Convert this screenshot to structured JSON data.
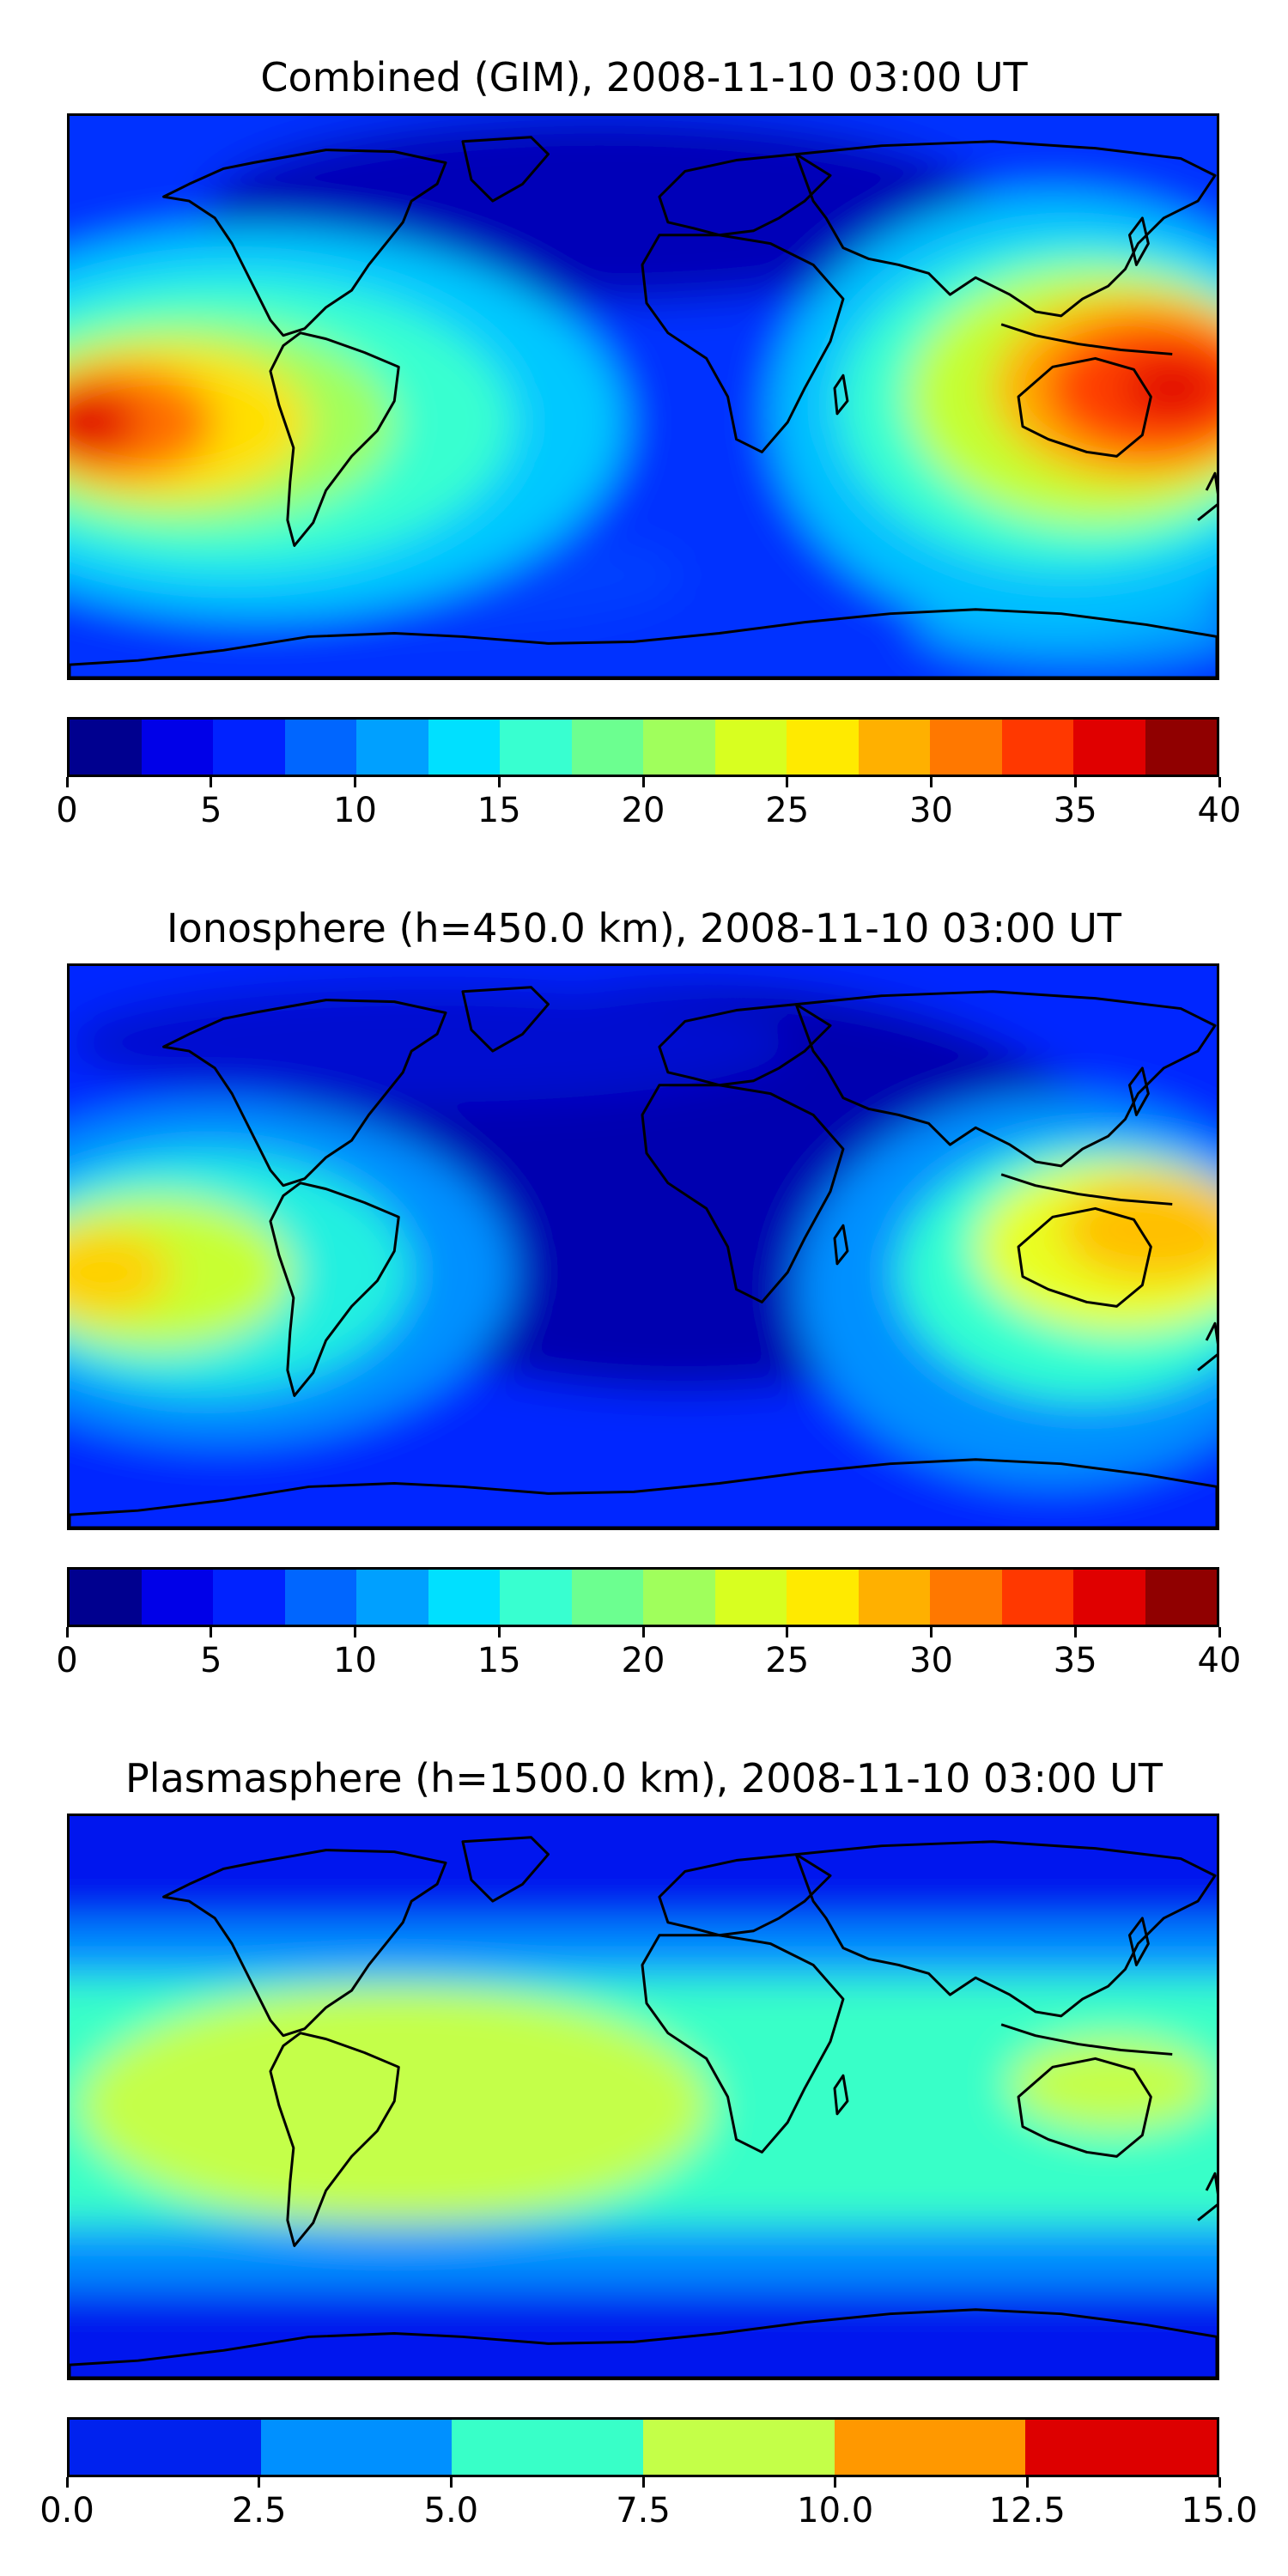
{
  "panels": [
    {
      "title": "Combined (GIM), 2008-11-10 03:00 UT",
      "levels": [
        0,
        2.5,
        5,
        7.5,
        10,
        12.5,
        15,
        17.5,
        20,
        22.5,
        25,
        27.5,
        30,
        32.5,
        35,
        37.5,
        40
      ],
      "colors": [
        "#00008f",
        "#0000e8",
        "#0022ff",
        "#0066ff",
        "#00a0ff",
        "#00e0ff",
        "#38ffd0",
        "#6cff90",
        "#a0ff5c",
        "#d8ff20",
        "#ffea00",
        "#ffb000",
        "#ff7800",
        "#ff3800",
        "#e00000",
        "#900000"
      ],
      "ticks": [
        "0",
        "5",
        "10",
        "15",
        "20",
        "25",
        "30",
        "35",
        "40"
      ]
    },
    {
      "title": "Ionosphere  (h=450.0 km), 2008-11-10 03:00 UT",
      "levels": [
        0,
        2.5,
        5,
        7.5,
        10,
        12.5,
        15,
        17.5,
        20,
        22.5,
        25,
        27.5,
        30,
        32.5,
        35,
        37.5,
        40
      ],
      "colors": [
        "#00008f",
        "#0000e8",
        "#0022ff",
        "#0066ff",
        "#00a0ff",
        "#00e0ff",
        "#38ffd0",
        "#6cff90",
        "#a0ff5c",
        "#d8ff20",
        "#ffea00",
        "#ffb000",
        "#ff7800",
        "#ff3800",
        "#e00000",
        "#900000"
      ],
      "ticks": [
        "0",
        "5",
        "10",
        "15",
        "20",
        "25",
        "30",
        "35",
        "40"
      ]
    },
    {
      "title": "Plasmasphere (h=1500.0 km), 2008-11-10 03:00 UT",
      "levels": [
        0,
        2.5,
        5,
        7.5,
        10,
        12.5,
        15
      ],
      "colors": [
        "#0022ee",
        "#0090ff",
        "#38ffc8",
        "#c4ff48",
        "#ff9800",
        "#dd0000"
      ],
      "ticks": [
        "0.0",
        "2.5",
        "5.0",
        "7.5",
        "10.0",
        "12.5",
        "15.0"
      ]
    }
  ]
}
